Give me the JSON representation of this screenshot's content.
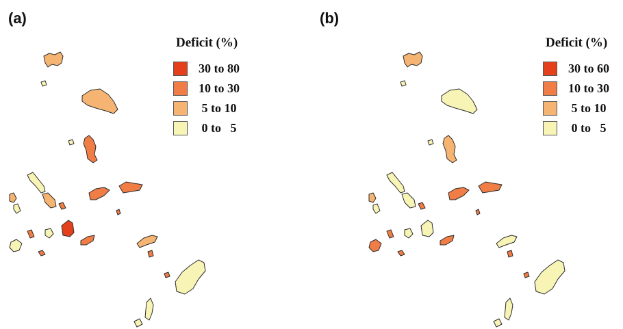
{
  "colors": {
    "class1": "#e4401c",
    "class2": "#ef7d45",
    "class3": "#f6b472",
    "class4": "#f7f4b6"
  },
  "panels": [
    {
      "label": "(a)",
      "legend": {
        "title": "Deficit (%)",
        "items": [
          {
            "label": "30 to 80",
            "color": "#e4401c"
          },
          {
            "label": "10 to 30",
            "color": "#ef7d45"
          },
          {
            "label": " 5 to 10",
            "color": "#f6b472"
          },
          {
            "label": " 0 to   5",
            "color": "#f7f4b6"
          }
        ]
      },
      "island_classes": {
        "north-top": 3,
        "north-big": 3,
        "tiny-nw": 4,
        "tiny-mid": 4,
        "central-north": 2,
        "w-long": 4,
        "w-small": 3,
        "w-mid": 3,
        "sw-small": 4,
        "sw-left": 4,
        "center-big": 1,
        "center-small": 4,
        "center-mid": 2,
        "center-right": 2,
        "se-thin": 3,
        "east-north": 2,
        "east-small1": 2,
        "east-small2": 2,
        "east-small3": 2,
        "south-big": 4,
        "south-long": 4,
        "south-tail": 4,
        "dots-1": 2,
        "dots-2": 2,
        "dots-3": 2
      }
    },
    {
      "label": "(b)",
      "legend": {
        "title": "Deficit (%)",
        "items": [
          {
            "label": "30 to 60",
            "color": "#e4401c"
          },
          {
            "label": "10 to 30",
            "color": "#ef7d45"
          },
          {
            "label": " 5 to 10",
            "color": "#f6b472"
          },
          {
            "label": " 0 to   5",
            "color": "#f7f4b6"
          }
        ]
      },
      "island_classes": {
        "north-top": 3,
        "north-big": 4,
        "tiny-nw": 4,
        "tiny-mid": 4,
        "central-north": 3,
        "w-long": 4,
        "w-small": 3,
        "w-mid": 4,
        "sw-small": 4,
        "sw-left": 2,
        "center-big": 4,
        "center-small": 4,
        "center-mid": 2,
        "center-right": 2,
        "se-thin": 4,
        "east-north": 2,
        "east-small1": 2,
        "east-small2": 2,
        "east-small3": 2,
        "south-big": 4,
        "south-long": 4,
        "south-tail": 4,
        "dots-1": 2,
        "dots-2": 2,
        "dots-3": 2
      }
    }
  ]
}
